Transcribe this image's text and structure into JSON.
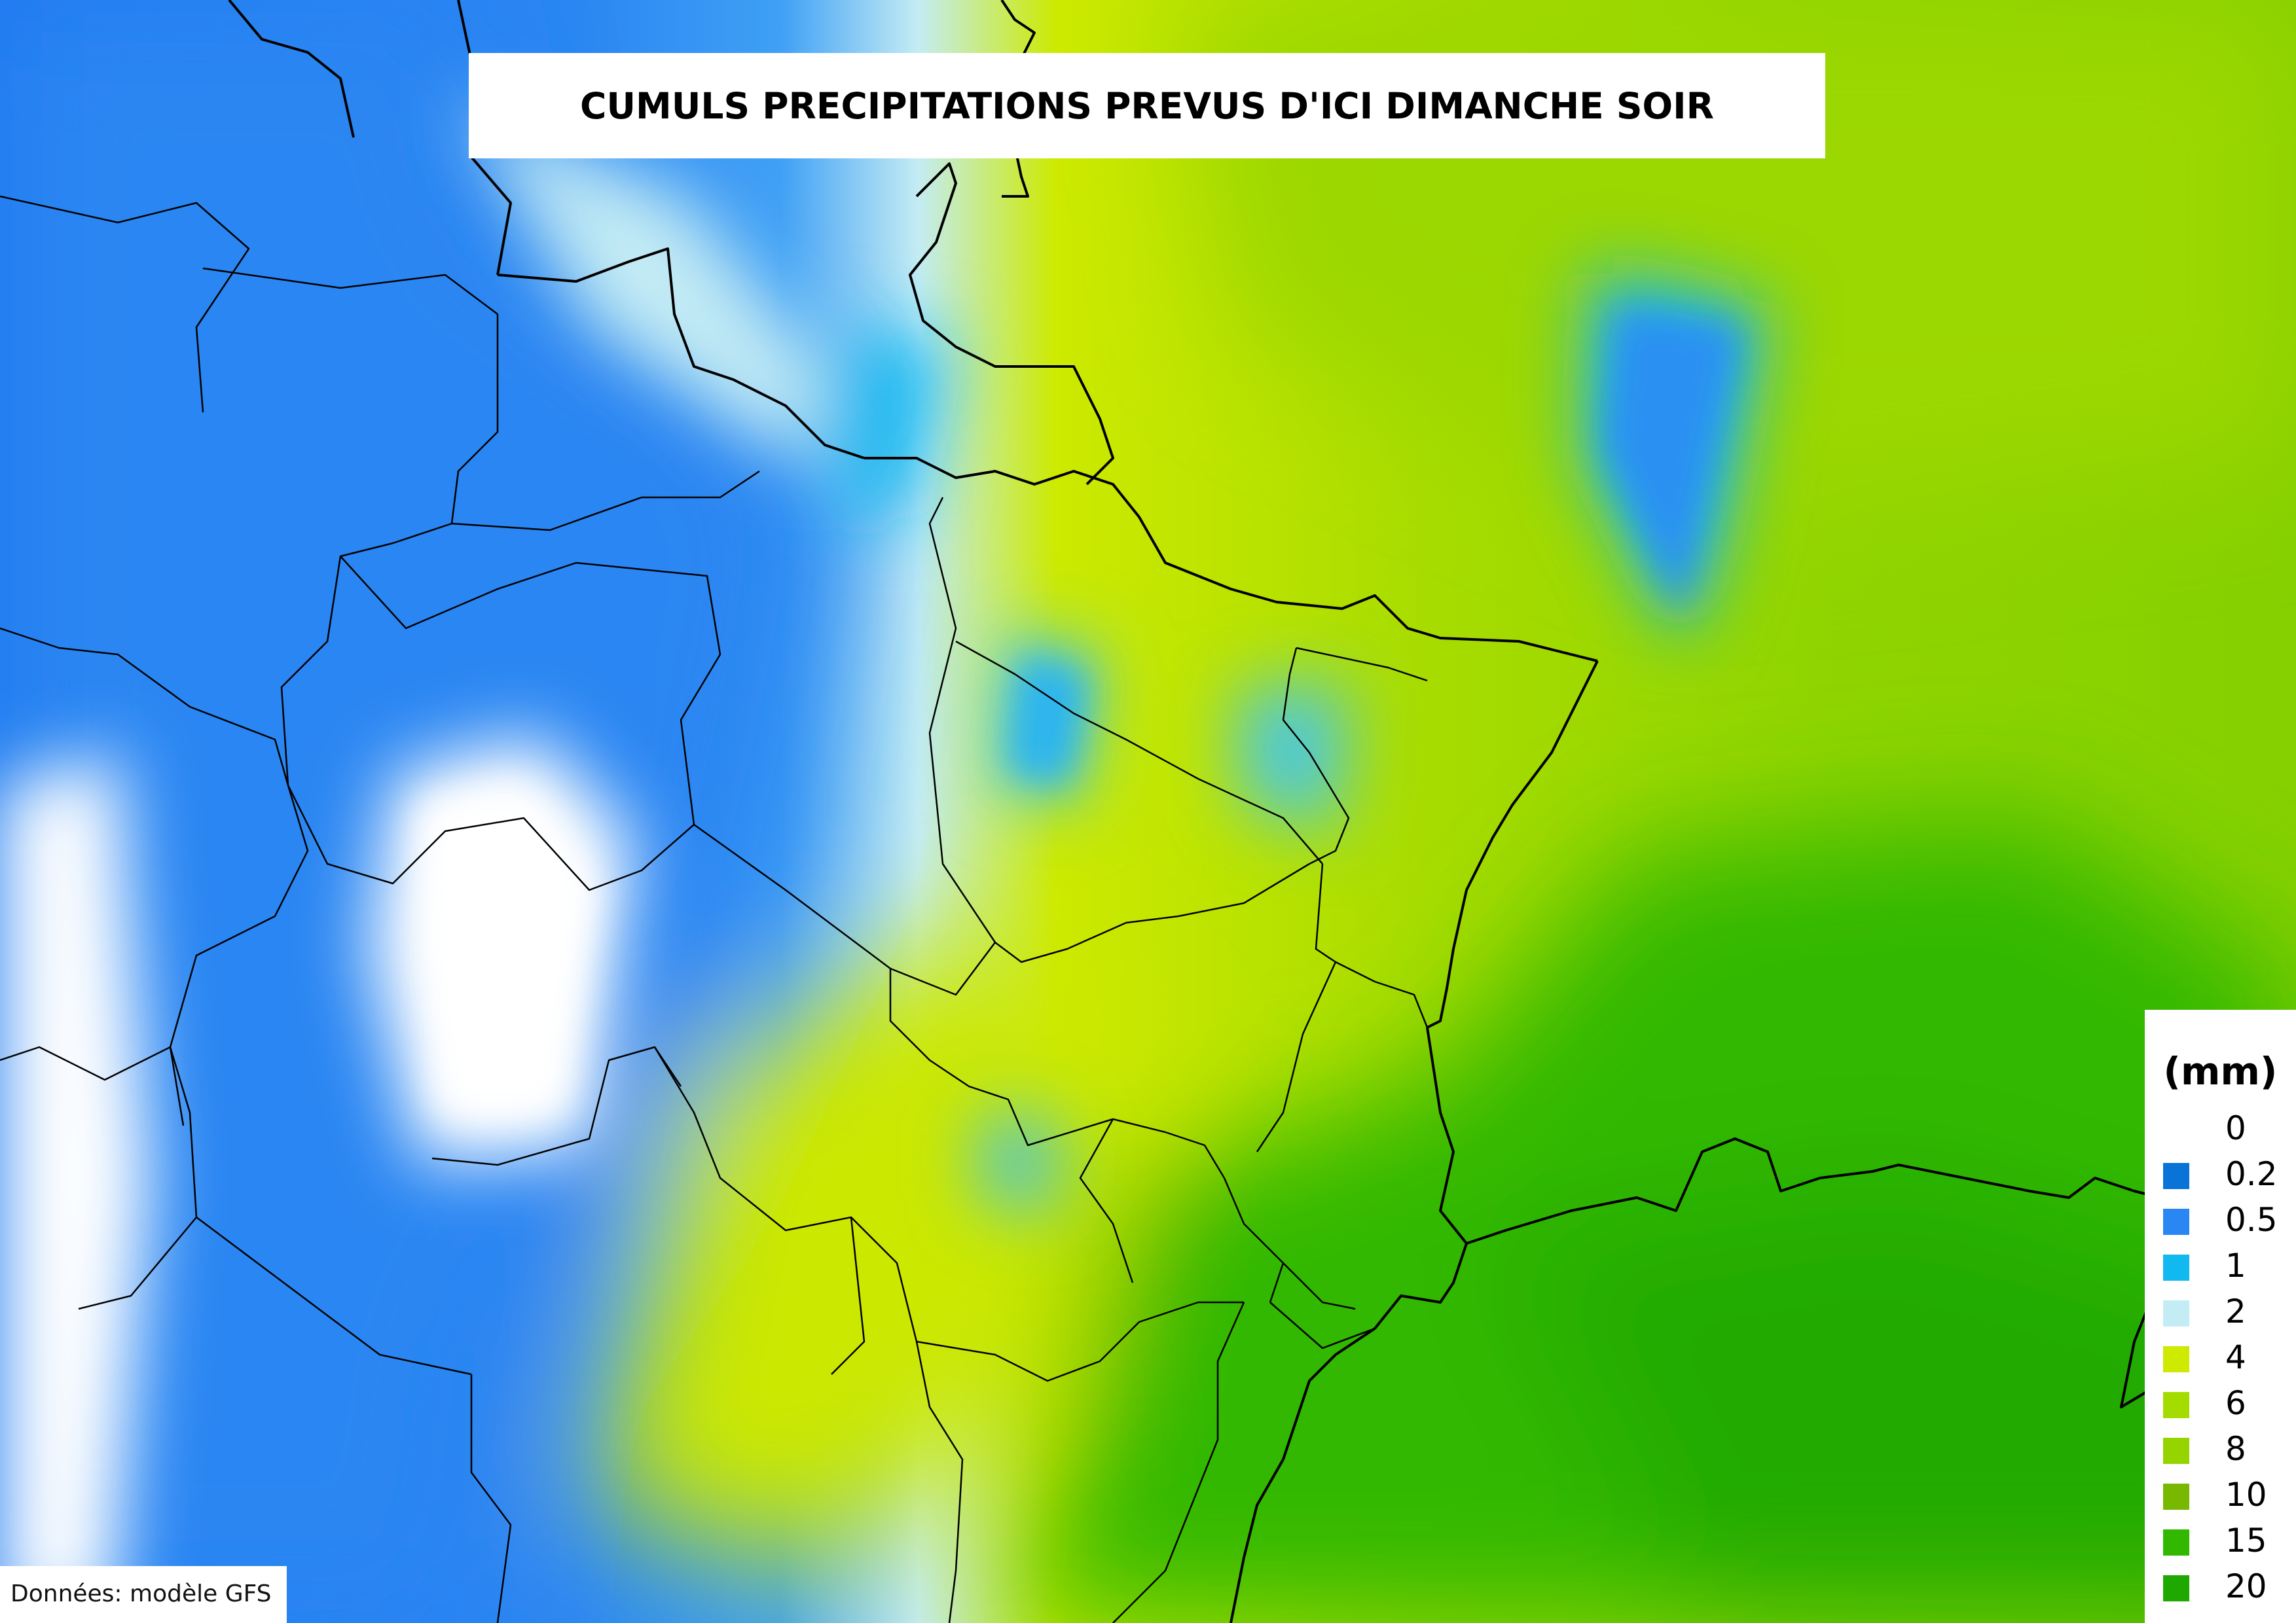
{
  "title": "CUMULS PRECIPITATIONS PREVUS D'ICI DIMANCHE SOIR",
  "source": "Données: modèle GFS",
  "legend": {
    "unit": "(mm)",
    "items": [
      {
        "label": "0",
        "color": "#ffffff"
      },
      {
        "label": "0.2",
        "color": "#0a73d8"
      },
      {
        "label": "0.5",
        "color": "#2a86f2"
      },
      {
        "label": "1",
        "color": "#12b8f0"
      },
      {
        "label": "2",
        "color": "#c4ecf4"
      },
      {
        "label": "4",
        "color": "#cdea00"
      },
      {
        "label": "6",
        "color": "#a5dc00"
      },
      {
        "label": "8",
        "color": "#96d400"
      },
      {
        "label": "10",
        "color": "#78b800"
      },
      {
        "label": "15",
        "color": "#32b800"
      },
      {
        "label": "20",
        "color": "#1ea800"
      }
    ]
  }
}
